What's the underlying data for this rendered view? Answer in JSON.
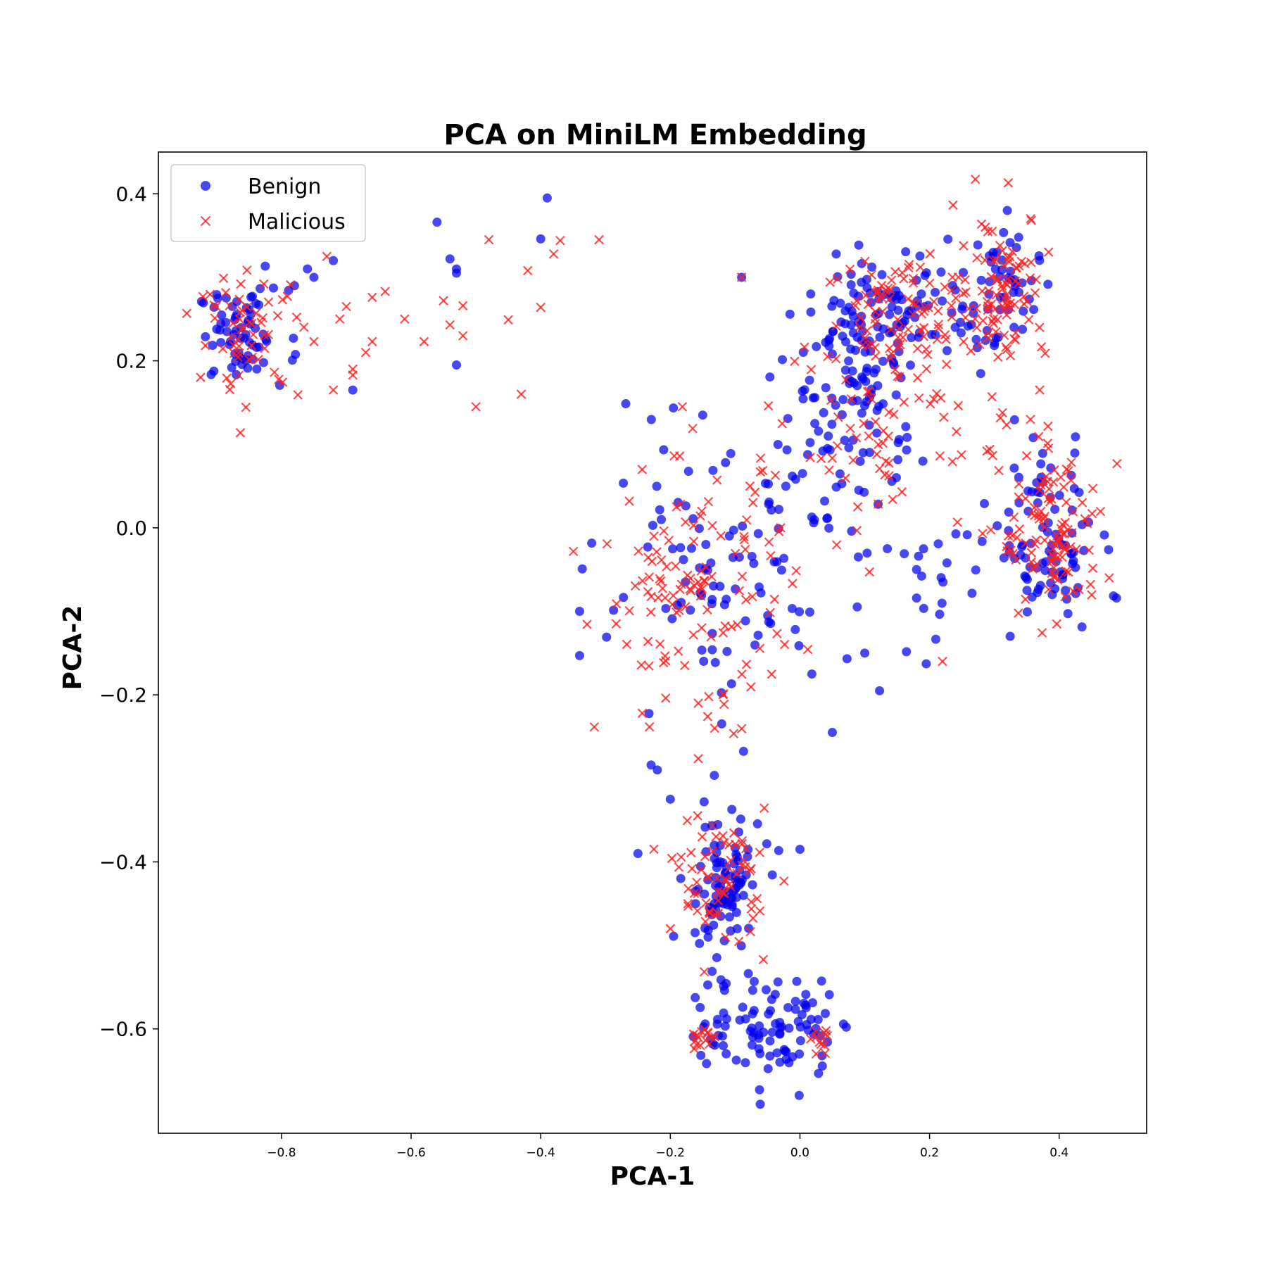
{
  "chart_data": {
    "type": "scatter",
    "title": "PCA on MiniLM Embedding",
    "xlabel": "PCA-1",
    "ylabel": "PCA-2",
    "xlim": [
      -0.99,
      0.535
    ],
    "ylim": [
      -0.725,
      0.45
    ],
    "xticks": [
      -0.8,
      -0.6,
      -0.4,
      -0.2,
      0.0,
      0.2,
      0.4
    ],
    "xtick_labels": [
      "−0.8",
      "−0.6",
      "−0.4",
      "−0.2",
      "0.0",
      "0.2",
      "0.4"
    ],
    "yticks": [
      0.4,
      0.2,
      0.0,
      -0.2,
      -0.4,
      -0.6
    ],
    "ytick_labels": [
      "0.4",
      "0.2",
      "0.0",
      "−0.2",
      "−0.4",
      "−0.6"
    ],
    "grid": false,
    "legend_position": "top-left",
    "series": [
      {
        "name": "Benign",
        "marker": "circle",
        "color": "#0000ee",
        "clusters": [
          {
            "cx": -0.86,
            "cy": 0.23,
            "sx": 0.035,
            "sy": 0.028,
            "n": 70
          },
          {
            "cx": 0.1,
            "cy": 0.19,
            "sx": 0.045,
            "sy": 0.07,
            "n": 110
          },
          {
            "cx": 0.15,
            "cy": 0.27,
            "sx": 0.05,
            "sy": 0.03,
            "n": 60
          },
          {
            "cx": 0.31,
            "cy": 0.28,
            "sx": 0.03,
            "sy": 0.04,
            "n": 55
          },
          {
            "cx": 0.38,
            "cy": -0.02,
            "sx": 0.04,
            "sy": 0.055,
            "n": 90
          },
          {
            "cx": -0.12,
            "cy": -0.43,
            "sx": 0.03,
            "sy": 0.045,
            "n": 100
          },
          {
            "cx": -0.02,
            "cy": -0.6,
            "sx": 0.035,
            "sy": 0.03,
            "n": 75
          },
          {
            "cx": -0.12,
            "cy": -0.6,
            "sx": 0.03,
            "sy": 0.025,
            "n": 25
          },
          {
            "cx": -0.15,
            "cy": -0.08,
            "sx": 0.08,
            "sy": 0.08,
            "n": 85
          },
          {
            "cx": 0.02,
            "cy": 0.05,
            "sx": 0.05,
            "sy": 0.08,
            "n": 45
          },
          {
            "cx": 0.22,
            "cy": -0.05,
            "sx": 0.06,
            "sy": 0.06,
            "n": 25
          }
        ],
        "points": [
          [
            -0.39,
            0.395
          ],
          [
            -0.56,
            0.366
          ],
          [
            -0.4,
            0.346
          ],
          [
            -0.54,
            0.322
          ],
          [
            -0.53,
            0.31
          ],
          [
            -0.53,
            0.305
          ],
          [
            -0.53,
            0.195
          ],
          [
            -0.69,
            0.165
          ],
          [
            -0.72,
            0.32
          ],
          [
            -0.75,
            0.3
          ],
          [
            -0.76,
            0.31
          ],
          [
            -0.78,
            0.29
          ],
          [
            -0.2,
            -0.325
          ],
          [
            -0.25,
            -0.39
          ],
          [
            -0.22,
            -0.29
          ],
          [
            0.1,
            -0.15
          ],
          [
            0.05,
            -0.245
          ],
          [
            -0.15,
            0.135
          ],
          [
            0.36,
            0.108
          ],
          [
            0.32,
            0.38
          ],
          [
            0.0,
            -0.385
          ],
          [
            0.18,
            -0.05
          ],
          [
            -0.34,
            -0.1
          ],
          [
            -0.34,
            -0.153
          ],
          [
            -0.09,
            0.3
          ]
        ]
      },
      {
        "name": "Malicious",
        "marker": "x",
        "color": "#ff2020",
        "clusters": [
          {
            "cx": -0.85,
            "cy": 0.23,
            "sx": 0.04,
            "sy": 0.035,
            "n": 60
          },
          {
            "cx": 0.16,
            "cy": 0.26,
            "sx": 0.06,
            "sy": 0.04,
            "n": 80
          },
          {
            "cx": 0.31,
            "cy": 0.29,
            "sx": 0.035,
            "sy": 0.045,
            "n": 100
          },
          {
            "cx": 0.39,
            "cy": -0.01,
            "sx": 0.04,
            "sy": 0.05,
            "n": 110
          },
          {
            "cx": -0.12,
            "cy": -0.42,
            "sx": 0.035,
            "sy": 0.04,
            "n": 70
          },
          {
            "cx": -0.16,
            "cy": -0.08,
            "sx": 0.075,
            "sy": 0.08,
            "n": 130
          },
          {
            "cx": 0.1,
            "cy": 0.1,
            "sx": 0.05,
            "sy": 0.06,
            "n": 50
          },
          {
            "cx": -0.15,
            "cy": -0.61,
            "sx": 0.012,
            "sy": 0.01,
            "n": 15
          },
          {
            "cx": 0.035,
            "cy": -0.615,
            "sx": 0.008,
            "sy": 0.01,
            "n": 12
          },
          {
            "cx": 0.25,
            "cy": 0.12,
            "sx": 0.05,
            "sy": 0.05,
            "n": 20
          }
        ],
        "points": [
          [
            -0.48,
            0.345
          ],
          [
            -0.31,
            0.345
          ],
          [
            -0.37,
            0.344
          ],
          [
            -0.38,
            0.328
          ],
          [
            -0.42,
            0.308
          ],
          [
            -0.55,
            0.272
          ],
          [
            -0.52,
            0.266
          ],
          [
            -0.4,
            0.264
          ],
          [
            -0.45,
            0.249
          ],
          [
            -0.54,
            0.243
          ],
          [
            -0.61,
            0.25
          ],
          [
            -0.52,
            0.23
          ],
          [
            -0.58,
            0.223
          ],
          [
            -0.5,
            0.145
          ],
          [
            -0.43,
            0.16
          ],
          [
            -0.64,
            0.283
          ],
          [
            -0.66,
            0.276
          ],
          [
            -0.7,
            0.265
          ],
          [
            -0.71,
            0.25
          ],
          [
            -0.73,
            0.325
          ],
          [
            -0.66,
            0.223
          ],
          [
            -0.67,
            0.21
          ],
          [
            -0.69,
            0.19
          ],
          [
            -0.69,
            0.183
          ],
          [
            -0.72,
            0.165
          ],
          [
            -0.75,
            0.223
          ],
          [
            -0.2,
            -0.48
          ],
          [
            -0.09,
            0.3
          ],
          [
            0.37,
            0.165
          ],
          [
            0.22,
            -0.16
          ]
        ]
      }
    ]
  }
}
